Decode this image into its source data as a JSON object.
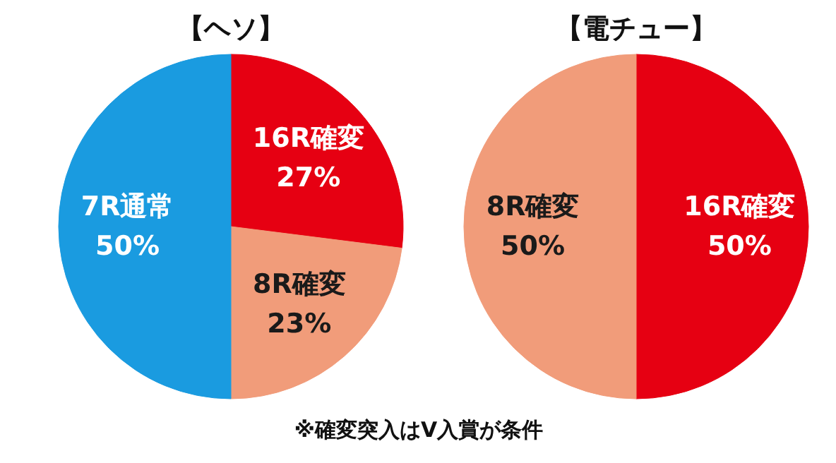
{
  "chart_data": [
    {
      "type": "pie",
      "title": "【ヘソ】",
      "categories": [
        "16R確変",
        "8R確変",
        "7R通常"
      ],
      "values": [
        27,
        23,
        50
      ],
      "colors": [
        "#e60012",
        "#f19c7a",
        "#1a9be0"
      ],
      "value_labels": [
        "27%",
        "23%",
        "50%"
      ],
      "annotations": [
        "※確変突入はV入賞が条件"
      ]
    },
    {
      "type": "pie",
      "title": "【電チュー】",
      "categories": [
        "16R確変",
        "8R確変"
      ],
      "values": [
        50,
        50
      ],
      "colors": [
        "#e60012",
        "#f19c7a"
      ],
      "value_labels": [
        "50%",
        "50%"
      ]
    }
  ]
}
